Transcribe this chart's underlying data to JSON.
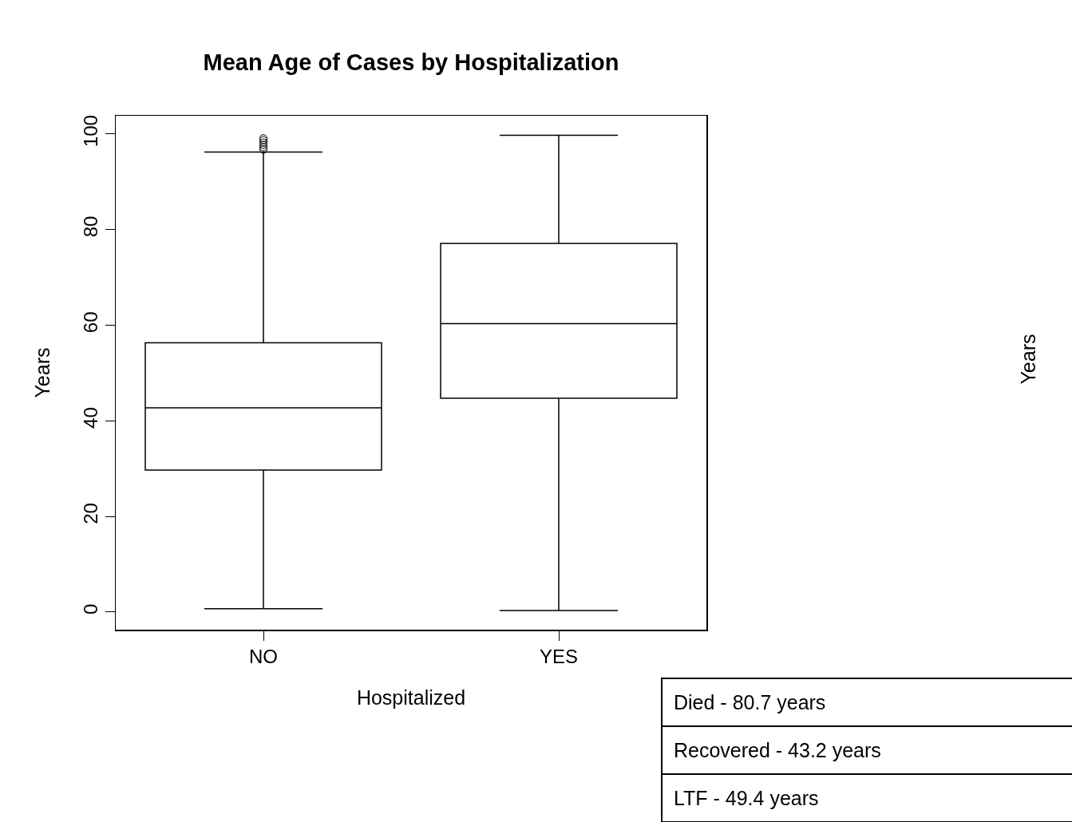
{
  "chart_data": {
    "type": "box",
    "title": "Mean Age of Cases by Hospitalization",
    "xlabel": "Hospitalized",
    "ylabel": "Years",
    "categories": [
      "NO",
      "YES"
    ],
    "boxes": [
      {
        "low": 0.7,
        "q1": 29.7,
        "median": 42.7,
        "q3": 56.3,
        "high": 96.2,
        "outliers": [
          96.7,
          97.2,
          97.7,
          98.2,
          98.7,
          99.1
        ]
      },
      {
        "low": 0.3,
        "q1": 44.7,
        "median": 60.3,
        "q3": 77.1,
        "high": 99.7
      }
    ],
    "ylim": [
      -3.7,
      103.8
    ],
    "yticks": [
      0,
      20,
      40,
      60,
      80,
      100
    ],
    "grid": false,
    "legend": false,
    "annotations": [
      "Years",
      "Died - 80.7 years",
      "Recovered - 43.2 years",
      "LTF - 49.4 years"
    ]
  }
}
